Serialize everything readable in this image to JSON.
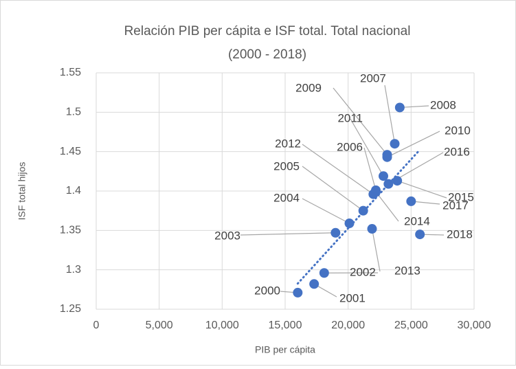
{
  "chart_data": {
    "type": "scatter",
    "title": [
      "Relación PIB per cápita e ISF total. Total nacional",
      "(2000 - 2018)"
    ],
    "xlabel": "PIB per cápita",
    "ylabel": "ISF total hijos",
    "labels": [
      "2000",
      "2001",
      "2002",
      "2003",
      "2004",
      "2005",
      "2006",
      "2007",
      "2008",
      "2009",
      "2010",
      "2011",
      "2012",
      "2013",
      "2014",
      "2015",
      "2016",
      "2017",
      "2018"
    ],
    "x": [
      16000,
      17300,
      18100,
      19000,
      20100,
      21200,
      22200,
      23700,
      24100,
      23100,
      23100,
      22800,
      22000,
      21900,
      22200,
      23900,
      23200,
      25000,
      25700
    ],
    "y": [
      1.271,
      1.282,
      1.296,
      1.347,
      1.359,
      1.375,
      1.401,
      1.46,
      1.506,
      1.446,
      1.443,
      1.419,
      1.396,
      1.352,
      1.399,
      1.413,
      1.409,
      1.387,
      1.345
    ],
    "color": "#4472c4",
    "trendline": "linear",
    "grid": true,
    "xlim": [
      0,
      30000
    ],
    "xticks": [
      0,
      {
        "value": 5000,
        "label": "5,000"
      },
      {
        "value": 10000,
        "label": "10,000"
      },
      {
        "value": 15000,
        "label": "15,000"
      },
      {
        "value": 20000,
        "label": "20,000"
      },
      {
        "value": 25000,
        "label": "25,000"
      },
      {
        "value": 30000,
        "label": "30,000"
      }
    ],
    "ylim": [
      1.25,
      1.55
    ],
    "yticks": [
      1.25,
      1.3,
      1.35,
      1.4,
      1.45,
      1.5,
      1.55
    ]
  }
}
